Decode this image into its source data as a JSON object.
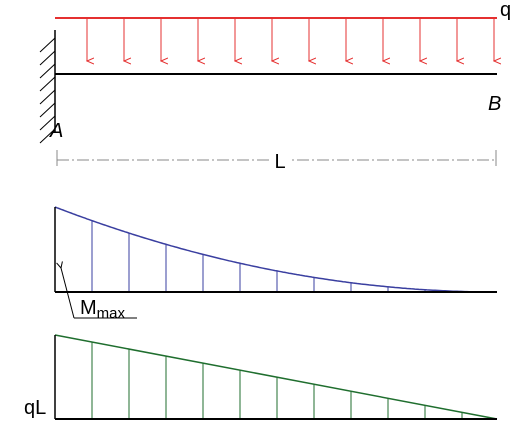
{
  "labels": {
    "load": "q",
    "support_a": "A",
    "end_b": "B",
    "length": "L",
    "moment": "M",
    "moment_sub": "max",
    "shear": "qL"
  }
}
